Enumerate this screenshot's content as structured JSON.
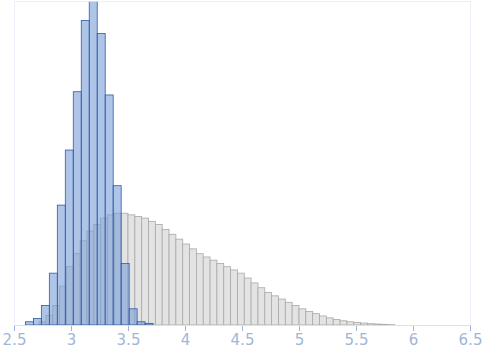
{
  "chart_data": {
    "type": "histogram",
    "xlim": [
      2.5,
      6.5
    ],
    "xticks": [
      2.5,
      3,
      3.5,
      4,
      4.5,
      5,
      5.5,
      6,
      6.5
    ],
    "ylim": [
      0,
      1
    ],
    "tick_labels": "x",
    "series": [
      {
        "color": "#e3e3e3",
        "bins": [
          2.72,
          2.78,
          2.84,
          2.9,
          2.96,
          3.02,
          3.08,
          3.14,
          3.2,
          3.26,
          3.32,
          3.38,
          3.44,
          3.5,
          3.56,
          3.62,
          3.68,
          3.74,
          3.8,
          3.86,
          3.92,
          3.98,
          4.04,
          4.1,
          4.16,
          4.22,
          4.28,
          4.34,
          4.4,
          4.46,
          4.52,
          4.58,
          4.64,
          4.7,
          4.76,
          4.82,
          4.88,
          4.94,
          5.0,
          5.06,
          5.12,
          5.18,
          5.24,
          5.3,
          5.36,
          5.42,
          5.48,
          5.54,
          5.6,
          5.66,
          5.72,
          5.78,
          5.84
        ],
        "values": [
          0.01,
          0.03,
          0.06,
          0.12,
          0.18,
          0.22,
          0.26,
          0.29,
          0.31,
          0.33,
          0.34,
          0.345,
          0.345,
          0.34,
          0.335,
          0.33,
          0.32,
          0.31,
          0.295,
          0.28,
          0.265,
          0.25,
          0.235,
          0.22,
          0.21,
          0.2,
          0.19,
          0.18,
          0.17,
          0.16,
          0.145,
          0.13,
          0.115,
          0.1,
          0.09,
          0.08,
          0.07,
          0.06,
          0.05,
          0.042,
          0.035,
          0.028,
          0.022,
          0.017,
          0.013,
          0.01,
          0.008,
          0.006,
          0.004,
          0.003,
          0.002,
          0.001
        ]
      },
      {
        "color": "#7a9fd8",
        "bins": [
          2.6,
          2.67,
          2.74,
          2.81,
          2.88,
          2.95,
          3.02,
          3.09,
          3.16,
          3.23,
          3.3,
          3.37,
          3.44,
          3.51,
          3.58,
          3.65,
          3.72
        ],
        "values": [
          0.01,
          0.02,
          0.06,
          0.16,
          0.37,
          0.54,
          0.72,
          0.94,
          1.0,
          0.9,
          0.71,
          0.43,
          0.19,
          0.05,
          0.01,
          0.005
        ]
      }
    ]
  }
}
